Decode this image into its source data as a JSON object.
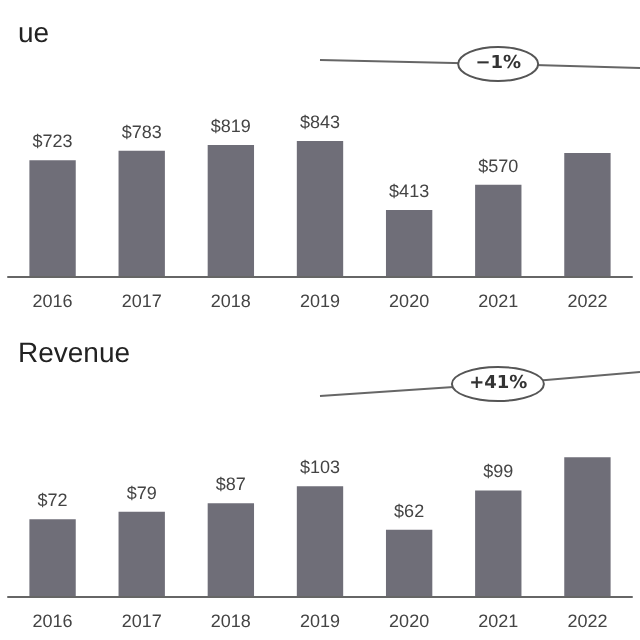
{
  "chart_data": [
    {
      "type": "bar",
      "title": "ue",
      "categories": [
        "2016",
        "2017",
        "2018",
        "2019",
        "2020",
        "2021",
        "2022"
      ],
      "values": [
        723,
        783,
        819,
        843,
        413,
        570,
        769
      ],
      "value_labels": [
        "$723",
        "$783",
        "$819",
        "$843",
        "$413",
        "$570",
        null
      ],
      "color": "#6f6e78",
      "annotations": [
        "−1%"
      ]
    },
    {
      "type": "bar",
      "title": "Revenue",
      "categories": [
        "2016",
        "2017",
        "2018",
        "2019",
        "2020",
        "2021",
        "2022"
      ],
      "values": [
        72,
        79,
        87,
        103,
        62,
        99,
        130
      ],
      "value_labels": [
        "$72",
        "$79",
        "$87",
        "$103",
        "$62",
        "$99",
        null
      ],
      "color": "#6f6e78",
      "annotations": [
        "+41%"
      ]
    }
  ]
}
